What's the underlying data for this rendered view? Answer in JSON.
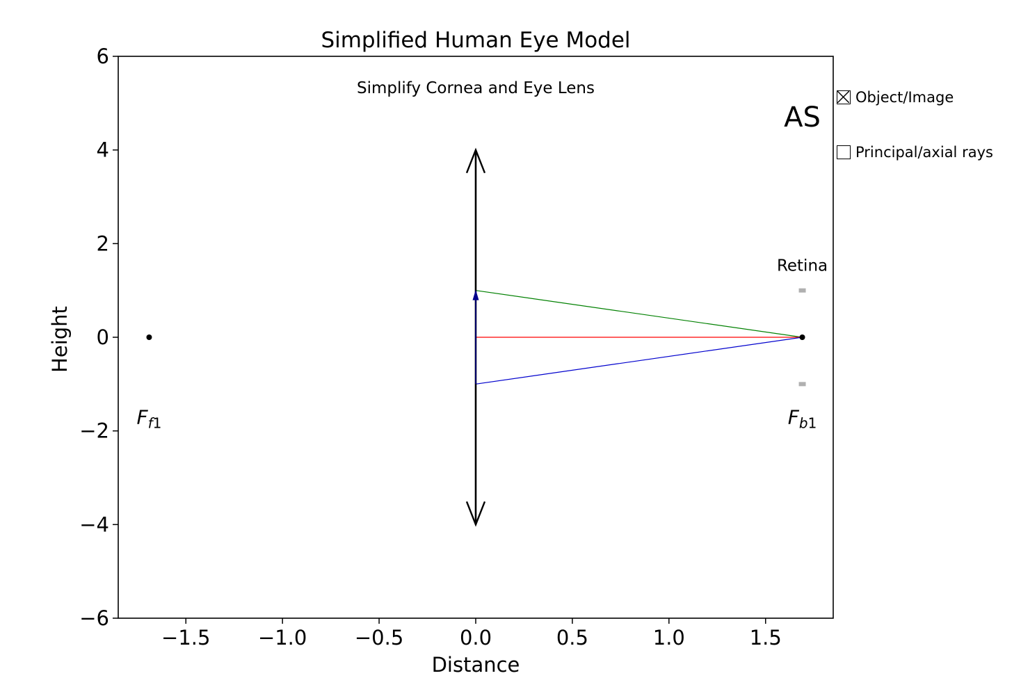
{
  "chart_data": {
    "type": "line",
    "title": "Simplified Human Eye Model",
    "subtitle": "Simplify Cornea and Eye Lens",
    "xlabel": "Distance",
    "ylabel": "Height",
    "xlim": [
      -1.85,
      1.85
    ],
    "ylim": [
      -6,
      6
    ],
    "xticks": [
      -1.5,
      -1.0,
      -0.5,
      0.0,
      0.5,
      1.0,
      1.5
    ],
    "xtick_labels": [
      "−1.5",
      "−1.0",
      "−0.5",
      "0.0",
      "0.5",
      "1.0",
      "1.5"
    ],
    "yticks": [
      -6,
      -4,
      -2,
      0,
      2,
      4,
      6
    ],
    "ytick_labels": [
      "−6",
      "−4",
      "−2",
      "0",
      "2",
      "4",
      "6"
    ],
    "grid": false,
    "lens": {
      "x": 0.0,
      "y_min": -4.0,
      "y_max": 4.0,
      "color": "#000000"
    },
    "object_arrow": {
      "x": 0.0,
      "y_from": -1.0,
      "y_to": 1.0,
      "color": "#00008b"
    },
    "rays": [
      {
        "color": "#008000",
        "x": [
          0.0,
          1.69
        ],
        "y": [
          1.0,
          0.0
        ]
      },
      {
        "color": "#ff0000",
        "x": [
          0.0,
          1.69
        ],
        "y": [
          0.0,
          0.0
        ]
      },
      {
        "color": "#0000cd",
        "x": [
          0.0,
          1.69
        ],
        "y": [
          -1.0,
          0.0
        ]
      }
    ],
    "retina_marks": {
      "x": 1.69,
      "y": [
        1.0,
        -1.0
      ],
      "color": "#b0b0b0"
    },
    "focal_points": [
      {
        "x": -1.69,
        "y": 0.0,
        "label_main": "F",
        "label_sub": "f1",
        "label_y": -1.85
      },
      {
        "x": 1.69,
        "y": 0.0,
        "label_main": "F",
        "label_sub": "b1",
        "label_y": -1.85
      }
    ],
    "annotations": [
      {
        "text": "Retina",
        "x": 1.69,
        "y": 1.42
      },
      {
        "text": "AS",
        "x": 1.69,
        "y": 4.5
      }
    ]
  },
  "controls": {
    "checkboxes": [
      {
        "label": "Object/Image",
        "checked": true
      },
      {
        "label": "Principal/axial rays",
        "checked": false
      }
    ]
  }
}
